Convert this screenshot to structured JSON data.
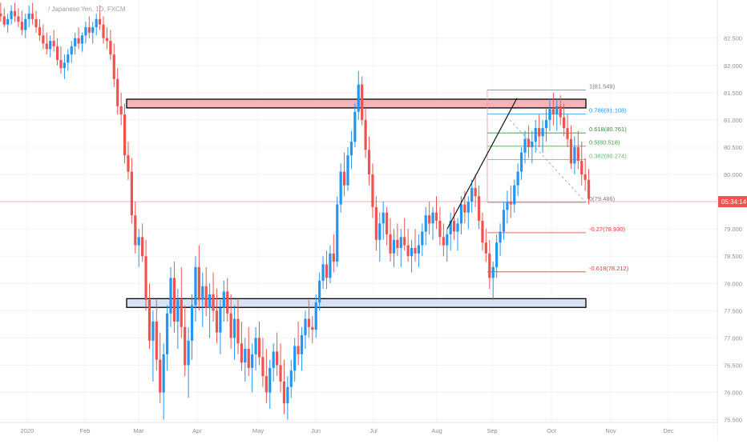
{
  "header": {
    "symbol_text": "/ Japanese Yen, 1D, FXCM"
  },
  "price_badge": {
    "text": "05:34:14",
    "price": 79.5,
    "color": "#ef5350"
  },
  "colors": {
    "up": "#2196f3",
    "down": "#ef5350",
    "grid": "#f1f3f6",
    "resistance_fill": "#f5b5b8",
    "support_fill": "#d7e3f4",
    "fib_gray": "#787b86",
    "fib_blue": "#2196f3",
    "fib_green": "#388e3c",
    "fib_red": "#e53935"
  },
  "chart_data": {
    "type": "candlestick",
    "y_axis": {
      "range": [
        75.45,
        83.2
      ],
      "ticks": [
        "82.500",
        "82.000",
        "81.500",
        "81.000",
        "80.500",
        "80.000",
        "79.500",
        "79.000",
        "78.500",
        "78.000",
        "77.500",
        "77.000",
        "76.500",
        "76.000",
        "75.500"
      ]
    },
    "x_axis": {
      "labels": [
        "2020",
        "Feb",
        "Mar",
        "Apr",
        "May",
        "Jun",
        "Jul",
        "Aug",
        "Sep",
        "Oct",
        "Nov",
        "Dec"
      ]
    },
    "zones": [
      {
        "name": "resistance",
        "top": 81.38,
        "bottom": 81.22
      },
      {
        "name": "support",
        "top": 77.72,
        "bottom": 77.56
      }
    ],
    "fib_levels": [
      {
        "label": "1(81.549)",
        "value": 81.549,
        "color": "#787b86"
      },
      {
        "label": "0.786(81.108)",
        "value": 81.108,
        "color": "#2196f3"
      },
      {
        "label": "0.618(80.761)",
        "value": 80.761,
        "color": "#388e3c"
      },
      {
        "label": "0.5(80.518)",
        "value": 80.518,
        "color": "#43a047"
      },
      {
        "label": "0.382(80.274)",
        "value": 80.274,
        "color": "#66bb6a"
      },
      {
        "label": "0(79.486)",
        "value": 79.486,
        "color": "#787b86"
      },
      {
        "label": "-0.27(78.930)",
        "value": 78.93,
        "color": "#e53935"
      },
      {
        "label": "-0.618(78.212)",
        "value": 78.212,
        "color": "#e53935"
      }
    ],
    "trendline": {
      "from": [
        "Aug",
        79.0
      ],
      "to": [
        "Sep",
        81.4
      ]
    },
    "candles": [
      [
        82.4,
        83.0,
        82.25,
        82.85
      ],
      [
        82.85,
        83.1,
        82.7,
        82.95
      ],
      [
        82.95,
        83.15,
        82.8,
        82.9
      ],
      [
        82.9,
        83.05,
        82.7,
        82.75
      ],
      [
        82.75,
        82.95,
        82.6,
        82.85
      ],
      [
        82.85,
        83.1,
        82.75,
        83.0
      ],
      [
        83.0,
        83.15,
        82.8,
        82.9
      ],
      [
        82.9,
        83.05,
        82.7,
        82.8
      ],
      [
        82.8,
        83.0,
        82.55,
        82.65
      ],
      [
        82.65,
        82.95,
        82.5,
        82.85
      ],
      [
        82.85,
        83.1,
        82.7,
        82.95
      ],
      [
        82.95,
        83.15,
        82.75,
        82.85
      ],
      [
        82.85,
        83.0,
        82.6,
        82.7
      ],
      [
        82.7,
        82.85,
        82.45,
        82.55
      ],
      [
        82.55,
        82.75,
        82.3,
        82.4
      ],
      [
        82.4,
        82.6,
        82.2,
        82.3
      ],
      [
        82.3,
        82.55,
        82.15,
        82.45
      ],
      [
        82.45,
        82.65,
        82.25,
        82.35
      ],
      [
        82.35,
        82.5,
        82.0,
        82.1
      ],
      [
        82.1,
        82.35,
        81.85,
        81.95
      ],
      [
        81.95,
        82.2,
        81.75,
        82.05
      ],
      [
        82.05,
        82.3,
        81.9,
        82.2
      ],
      [
        82.2,
        82.45,
        82.05,
        82.35
      ],
      [
        82.35,
        82.6,
        82.2,
        82.5
      ],
      [
        82.5,
        82.7,
        82.3,
        82.4
      ],
      [
        82.4,
        82.6,
        82.25,
        82.55
      ],
      [
        82.55,
        82.8,
        82.4,
        82.7
      ],
      [
        82.7,
        82.9,
        82.5,
        82.6
      ],
      [
        82.6,
        82.8,
        82.4,
        82.7
      ],
      [
        82.7,
        82.95,
        82.55,
        82.85
      ],
      [
        82.85,
        83.1,
        82.65,
        82.75
      ],
      [
        82.75,
        82.9,
        82.4,
        82.5
      ],
      [
        82.5,
        82.7,
        82.3,
        82.45
      ],
      [
        82.45,
        82.65,
        82.1,
        82.2
      ],
      [
        82.2,
        82.4,
        81.6,
        81.75
      ],
      [
        81.75,
        81.95,
        81.1,
        81.25
      ],
      [
        81.25,
        81.5,
        80.9,
        81.1
      ],
      [
        81.1,
        81.3,
        80.2,
        80.35
      ],
      [
        80.35,
        80.6,
        79.9,
        80.05
      ],
      [
        80.05,
        80.3,
        79.1,
        79.25
      ],
      [
        79.25,
        79.5,
        78.55,
        78.7
      ],
      [
        78.7,
        79.0,
        78.3,
        78.85
      ],
      [
        78.85,
        79.1,
        78.4,
        78.5
      ],
      [
        78.5,
        78.8,
        77.5,
        77.7
      ],
      [
        77.7,
        78.0,
        76.8,
        76.95
      ],
      [
        76.95,
        77.5,
        76.2,
        77.3
      ],
      [
        77.3,
        77.7,
        76.4,
        76.6
      ],
      [
        76.6,
        77.1,
        75.8,
        76.0
      ],
      [
        76.0,
        76.9,
        75.5,
        76.7
      ],
      [
        76.7,
        77.6,
        76.4,
        77.45
      ],
      [
        77.45,
        78.3,
        77.2,
        78.1
      ],
      [
        78.1,
        78.4,
        77.1,
        77.3
      ],
      [
        77.3,
        77.9,
        76.8,
        77.7
      ],
      [
        77.7,
        78.3,
        77.0,
        77.2
      ],
      [
        77.2,
        77.6,
        76.3,
        76.5
      ],
      [
        76.5,
        77.2,
        75.9,
        76.95
      ],
      [
        76.95,
        77.8,
        76.6,
        77.6
      ],
      [
        77.6,
        78.5,
        77.3,
        78.3
      ],
      [
        78.3,
        78.7,
        77.5,
        77.7
      ],
      [
        77.7,
        78.2,
        77.2,
        77.95
      ],
      [
        77.95,
        78.3,
        77.4,
        77.55
      ],
      [
        77.55,
        78.0,
        77.0,
        77.8
      ],
      [
        77.8,
        78.2,
        77.3,
        77.5
      ],
      [
        77.5,
        77.9,
        76.9,
        77.1
      ],
      [
        77.1,
        77.7,
        76.7,
        77.55
      ],
      [
        77.55,
        78.05,
        77.3,
        77.85
      ],
      [
        77.85,
        78.1,
        77.3,
        77.45
      ],
      [
        77.45,
        77.8,
        76.8,
        77.0
      ],
      [
        77.0,
        77.6,
        76.6,
        77.35
      ],
      [
        77.35,
        77.7,
        76.7,
        76.9
      ],
      [
        76.9,
        77.3,
        76.4,
        76.55
      ],
      [
        76.55,
        77.0,
        76.2,
        76.8
      ],
      [
        76.8,
        77.2,
        76.3,
        76.45
      ],
      [
        76.45,
        76.9,
        76.0,
        76.7
      ],
      [
        76.7,
        77.2,
        76.4,
        77.0
      ],
      [
        77.0,
        77.3,
        76.5,
        76.65
      ],
      [
        76.65,
        77.0,
        76.1,
        76.3
      ],
      [
        76.3,
        76.8,
        75.8,
        76.0
      ],
      [
        76.0,
        76.6,
        75.7,
        76.45
      ],
      [
        76.45,
        76.9,
        76.2,
        76.75
      ],
      [
        76.75,
        77.1,
        76.3,
        76.5
      ],
      [
        76.5,
        76.9,
        76.0,
        76.2
      ],
      [
        76.2,
        76.6,
        75.6,
        75.8
      ],
      [
        75.8,
        76.3,
        75.5,
        76.1
      ],
      [
        76.1,
        76.6,
        75.9,
        76.4
      ],
      [
        76.4,
        77.0,
        76.2,
        76.85
      ],
      [
        76.85,
        77.3,
        76.5,
        76.7
      ],
      [
        76.7,
        77.2,
        76.4,
        77.05
      ],
      [
        77.05,
        77.5,
        76.8,
        77.35
      ],
      [
        77.35,
        77.7,
        77.0,
        77.2
      ],
      [
        77.2,
        77.4,
        76.9,
        77.15
      ],
      [
        77.15,
        77.8,
        77.0,
        77.65
      ],
      [
        77.65,
        78.2,
        77.5,
        78.05
      ],
      [
        78.05,
        78.5,
        77.9,
        78.35
      ],
      [
        78.35,
        78.6,
        77.9,
        78.1
      ],
      [
        78.1,
        78.7,
        78.0,
        78.55
      ],
      [
        78.55,
        78.9,
        78.2,
        78.4
      ],
      [
        78.4,
        79.6,
        78.3,
        79.45
      ],
      [
        79.45,
        80.2,
        79.3,
        80.05
      ],
      [
        80.05,
        80.4,
        79.6,
        79.8
      ],
      [
        79.8,
        80.5,
        79.7,
        80.35
      ],
      [
        80.35,
        80.8,
        80.1,
        80.6
      ],
      [
        80.6,
        81.3,
        80.5,
        81.15
      ],
      [
        81.15,
        81.9,
        81.0,
        81.65
      ],
      [
        81.65,
        81.8,
        80.9,
        81.0
      ],
      [
        81.0,
        81.2,
        80.3,
        80.45
      ],
      [
        80.45,
        80.7,
        79.8,
        80.0
      ],
      [
        80.0,
        80.2,
        79.2,
        79.4
      ],
      [
        79.4,
        79.6,
        78.6,
        78.8
      ],
      [
        78.8,
        79.3,
        78.4,
        79.1
      ],
      [
        79.1,
        79.5,
        78.8,
        79.3
      ],
      [
        79.3,
        79.4,
        78.7,
        78.9
      ],
      [
        78.9,
        79.2,
        78.4,
        78.55
      ],
      [
        78.55,
        79.0,
        78.3,
        78.8
      ],
      [
        78.8,
        79.1,
        78.5,
        78.65
      ],
      [
        78.65,
        79.0,
        78.3,
        78.85
      ],
      [
        78.85,
        79.2,
        78.6,
        78.7
      ],
      [
        78.7,
        79.0,
        78.4,
        78.5
      ],
      [
        78.5,
        78.8,
        78.2,
        78.65
      ],
      [
        78.65,
        79.0,
        78.4,
        78.55
      ],
      [
        78.55,
        78.9,
        78.3,
        78.7
      ],
      [
        78.7,
        79.1,
        78.5,
        78.95
      ],
      [
        78.95,
        79.4,
        78.7,
        79.25
      ],
      [
        79.25,
        79.5,
        78.9,
        79.1
      ],
      [
        79.1,
        79.4,
        78.8,
        79.3
      ],
      [
        79.3,
        79.6,
        79.0,
        79.15
      ],
      [
        79.15,
        79.4,
        78.7,
        78.85
      ],
      [
        78.85,
        79.1,
        78.5,
        78.7
      ],
      [
        78.7,
        79.0,
        78.4,
        78.9
      ],
      [
        78.9,
        79.3,
        78.6,
        79.15
      ],
      [
        79.15,
        79.4,
        78.8,
        78.95
      ],
      [
        78.95,
        79.2,
        78.6,
        79.1
      ],
      [
        79.1,
        79.6,
        78.9,
        79.45
      ],
      [
        79.45,
        79.7,
        79.1,
        79.3
      ],
      [
        79.3,
        79.6,
        79.0,
        79.5
      ],
      [
        79.5,
        79.9,
        79.3,
        79.75
      ],
      [
        79.75,
        80.0,
        79.4,
        79.6
      ],
      [
        79.6,
        79.8,
        79.0,
        79.15
      ],
      [
        79.15,
        79.3,
        78.6,
        78.75
      ],
      [
        78.75,
        79.0,
        78.4,
        78.55
      ],
      [
        78.55,
        78.8,
        77.9,
        78.1
      ],
      [
        78.1,
        78.4,
        77.7,
        78.3
      ],
      [
        78.3,
        78.9,
        78.1,
        78.75
      ],
      [
        78.75,
        79.1,
        78.5,
        78.95
      ],
      [
        78.95,
        79.5,
        78.8,
        79.35
      ],
      [
        79.35,
        79.7,
        79.1,
        79.5
      ],
      [
        79.5,
        79.8,
        79.2,
        79.45
      ],
      [
        79.45,
        79.9,
        79.3,
        79.8
      ],
      [
        79.8,
        80.2,
        79.6,
        80.05
      ],
      [
        80.05,
        80.5,
        79.9,
        80.4
      ],
      [
        80.4,
        80.8,
        80.2,
        80.65
      ],
      [
        80.65,
        80.9,
        80.3,
        80.5
      ],
      [
        80.5,
        80.8,
        80.2,
        80.6
      ],
      [
        80.6,
        81.0,
        80.4,
        80.85
      ],
      [
        80.85,
        81.1,
        80.5,
        80.7
      ],
      [
        80.7,
        81.0,
        80.4,
        80.85
      ],
      [
        80.85,
        81.2,
        80.6,
        81.0
      ],
      [
        81.0,
        81.4,
        80.8,
        81.2
      ],
      [
        81.2,
        81.5,
        80.9,
        81.1
      ],
      [
        81.1,
        81.4,
        80.8,
        81.25
      ],
      [
        81.25,
        81.45,
        80.9,
        81.05
      ],
      [
        81.05,
        81.3,
        80.7,
        80.85
      ],
      [
        80.85,
        81.1,
        80.5,
        80.65
      ],
      [
        80.65,
        80.9,
        80.1,
        80.2
      ],
      [
        80.2,
        80.7,
        80.0,
        80.5
      ],
      [
        80.5,
        80.8,
        80.1,
        80.25
      ],
      [
        80.25,
        80.6,
        79.8,
        80.0
      ],
      [
        80.0,
        80.3,
        79.7,
        79.9
      ],
      [
        79.9,
        80.1,
        79.45,
        79.55
      ]
    ]
  }
}
